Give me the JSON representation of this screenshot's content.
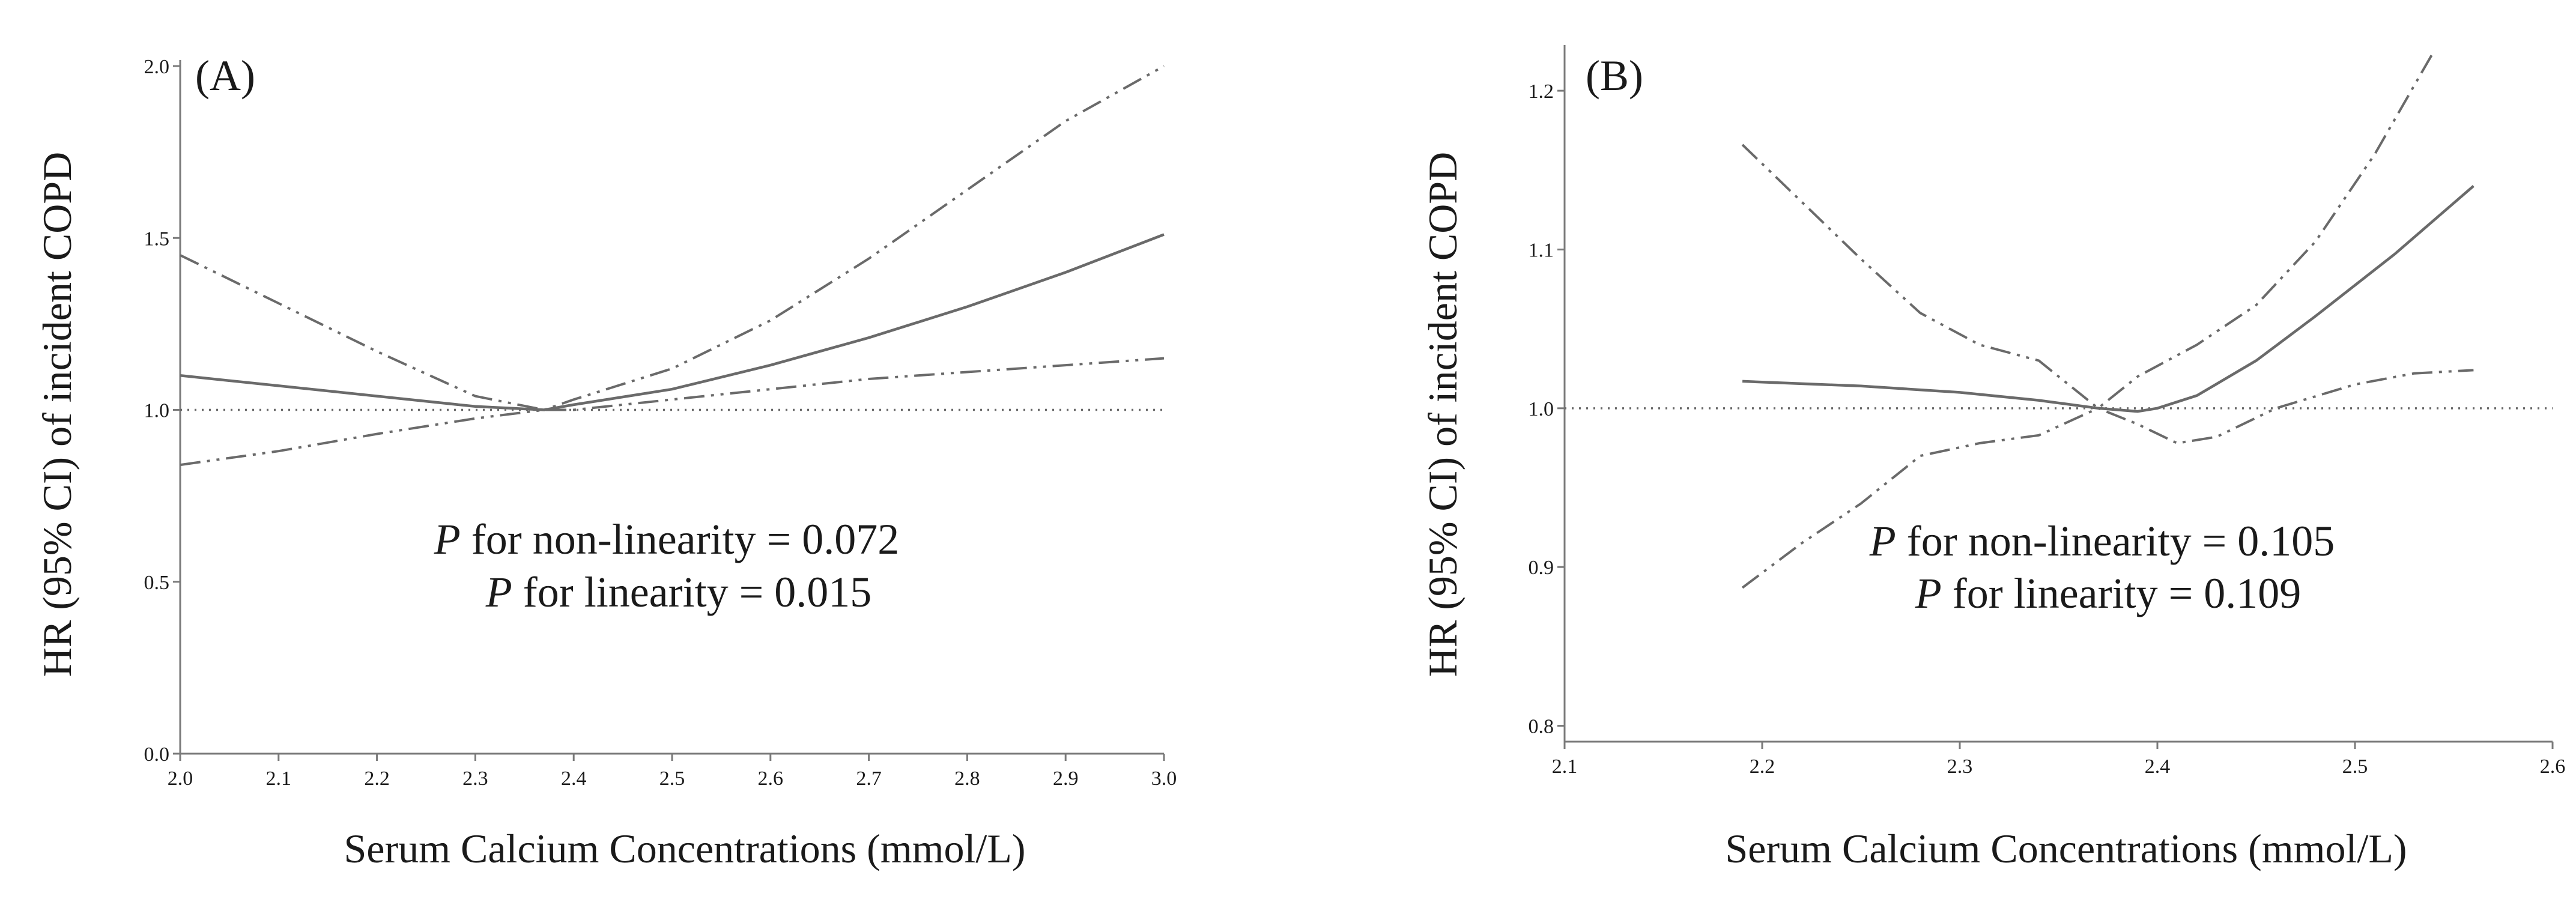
{
  "chart_data": [
    {
      "panel_label": "(A)",
      "type": "line",
      "xlabel": "Serum Calcium Concentrations (mmol/L)",
      "ylabel": "HR (95% CI) of incident COPD",
      "xlim": [
        2.0,
        3.0
      ],
      "ylim": [
        0.0,
        2.0
      ],
      "x_ticks": [
        "2.0",
        "2.1",
        "2.2",
        "2.3",
        "2.4",
        "2.5",
        "2.6",
        "2.7",
        "2.8",
        "2.9",
        "3.0"
      ],
      "y_ticks": [
        "0.0",
        "0.5",
        "1.0",
        "1.5",
        "2.0"
      ],
      "reference_line": 1.0,
      "annotation": {
        "line1": {
          "p": "P",
          "text": " for non-linearity = 0.072"
        },
        "line2": {
          "p": "P",
          "text": " for linearity = 0.015"
        }
      },
      "series": [
        {
          "name": "HR",
          "style": "solid",
          "x": [
            2.0,
            2.1,
            2.2,
            2.3,
            2.37,
            2.4,
            2.5,
            2.6,
            2.7,
            2.8,
            2.9,
            3.0
          ],
          "y": [
            1.1,
            1.07,
            1.04,
            1.01,
            1.0,
            1.015,
            1.06,
            1.13,
            1.21,
            1.3,
            1.4,
            1.51
          ]
        },
        {
          "name": "Upper 95% CI",
          "style": "dash-dot-dot",
          "x": [
            2.0,
            2.1,
            2.2,
            2.3,
            2.37,
            2.4,
            2.5,
            2.6,
            2.7,
            2.8,
            2.9,
            3.0
          ],
          "y": [
            1.45,
            1.31,
            1.17,
            1.04,
            1.0,
            1.03,
            1.12,
            1.26,
            1.44,
            1.64,
            1.84,
            2.0
          ]
        },
        {
          "name": "Lower 95% CI",
          "style": "dash-dot-dot",
          "x": [
            2.0,
            2.1,
            2.2,
            2.3,
            2.37,
            2.4,
            2.5,
            2.6,
            2.7,
            2.8,
            2.9,
            3.0
          ],
          "y": [
            0.84,
            0.88,
            0.93,
            0.975,
            1.0,
            1.0,
            1.03,
            1.06,
            1.09,
            1.11,
            1.13,
            1.15
          ]
        }
      ]
    },
    {
      "panel_label": "(B)",
      "type": "line",
      "xlabel": "Serum Calcium Concentrations (mmol/L)",
      "ylabel": "HR (95% CI) of incident COPD",
      "xlim": [
        2.1,
        2.6
      ],
      "ylim": [
        0.79,
        1.225
      ],
      "x_ticks": [
        "2.1",
        "2.2",
        "2.3",
        "2.4",
        "2.5",
        "2.6"
      ],
      "y_ticks": [
        "0.8",
        "0.9",
        "1.0",
        "1.1",
        "1.2"
      ],
      "reference_line": 1.0,
      "annotation": {
        "line1": {
          "p": "P",
          "text": " for non-linearity = 0.105"
        },
        "line2": {
          "p": "P",
          "text": " for linearity = 0.109"
        }
      },
      "series": [
        {
          "name": "HR",
          "style": "solid",
          "x": [
            2.19,
            2.25,
            2.3,
            2.34,
            2.37,
            2.39,
            2.4,
            2.42,
            2.45,
            2.48,
            2.52,
            2.56
          ],
          "y": [
            1.017,
            1.014,
            1.01,
            1.005,
            1.0,
            0.998,
            1.0,
            1.008,
            1.03,
            1.058,
            1.097,
            1.14
          ]
        },
        {
          "name": "Upper 95% CI",
          "style": "dash-dot-dot",
          "x": [
            2.19,
            2.22,
            2.25,
            2.28,
            2.31,
            2.34,
            2.37,
            2.39,
            2.42,
            2.45,
            2.48,
            2.51,
            2.54
          ],
          "y": [
            1.166,
            1.13,
            1.094,
            1.06,
            1.04,
            1.03,
            1.0,
            1.02,
            1.04,
            1.065,
            1.105,
            1.16,
            1.225
          ]
        },
        {
          "name": "Lower 95% CI",
          "style": "dash-dot-dot",
          "x": [
            2.19,
            2.22,
            2.25,
            2.28,
            2.31,
            2.34,
            2.37,
            2.39,
            2.41,
            2.43,
            2.46,
            2.5,
            2.53,
            2.56
          ],
          "y": [
            0.887,
            0.915,
            0.94,
            0.97,
            0.978,
            0.983,
            1.0,
            0.99,
            0.978,
            0.982,
            1.0,
            1.015,
            1.022,
            1.024
          ]
        }
      ]
    }
  ]
}
